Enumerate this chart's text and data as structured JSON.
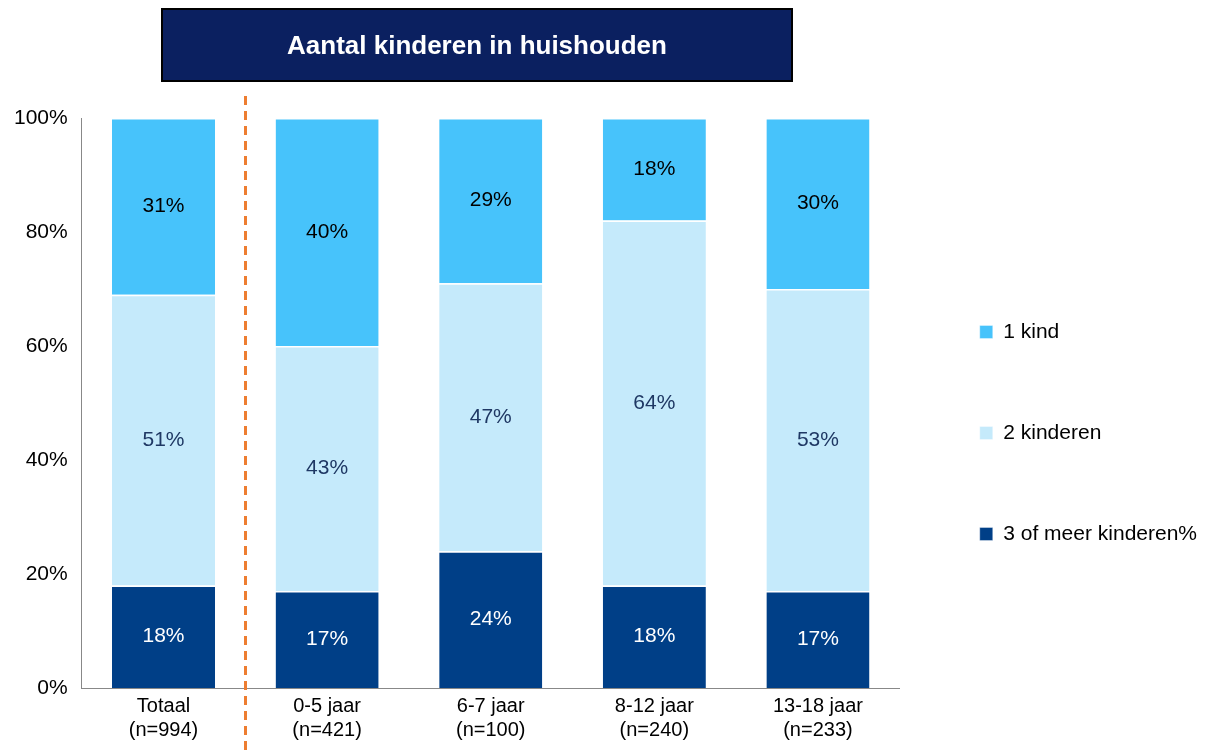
{
  "chart_data": {
    "type": "bar",
    "title": "Aantal kinderen in huishouden",
    "stacked": true,
    "legend": "right",
    "grid": false,
    "categories": [
      "Totaal\n(n=994)",
      "0-5 jaar\n(n=421)",
      "6-7 jaar\n(n=100)",
      "8-12 jaar\n(n=240)",
      "13-18 jaar\n(n=233)"
    ],
    "series": [
      {
        "name": "3 of meer kinderen%",
        "color": "#003f87",
        "values": [
          18,
          17,
          24,
          18,
          17
        ],
        "value_labels": [
          "18%",
          "17%",
          "24%",
          "18%",
          "17%"
        ]
      },
      {
        "name": "2 kinderen",
        "color": "#c5eafb",
        "values": [
          51,
          43,
          47,
          64,
          53
        ],
        "value_labels": [
          "51%",
          "43%",
          "47%",
          "64%",
          "53%"
        ]
      },
      {
        "name": "1 kind",
        "color": "#47c3fb",
        "values": [
          31,
          40,
          29,
          18,
          30
        ],
        "value_labels": [
          "31%",
          "40%",
          "29%",
          "18%",
          "30%"
        ]
      }
    ],
    "ylim": [
      0,
      100
    ],
    "yticks": [
      {
        "value": 0,
        "label": "0%"
      },
      {
        "value": 20,
        "label": "20%"
      },
      {
        "value": 40,
        "label": "40%"
      },
      {
        "value": 60,
        "label": "60%"
      },
      {
        "value": 80,
        "label": "80%"
      },
      {
        "value": 100,
        "label": "100%"
      }
    ]
  }
}
